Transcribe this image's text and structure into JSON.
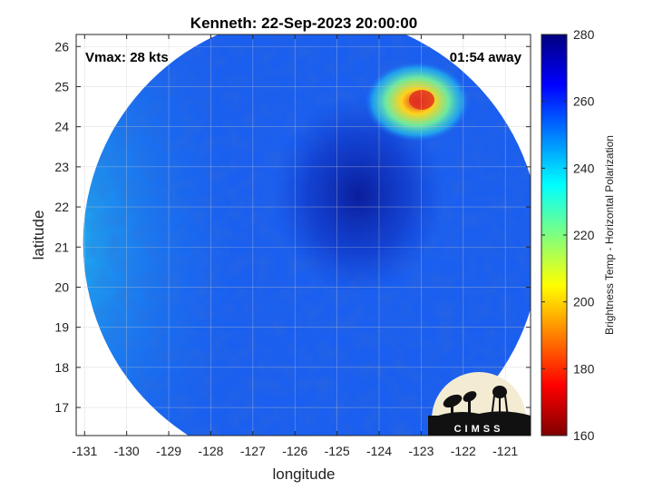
{
  "chart_data": {
    "type": "heatmap",
    "title": "Kenneth: 22-Sep-2023 20:00:00",
    "xlabel": "longitude",
    "ylabel": "latitude",
    "xlim": [
      -131.2,
      -120.4
    ],
    "ylim": [
      16.3,
      26.3
    ],
    "x_ticks": [
      -131,
      -130,
      -129,
      -128,
      -127,
      -126,
      -125,
      -124,
      -123,
      -122,
      -121
    ],
    "y_ticks": [
      17,
      18,
      19,
      20,
      21,
      22,
      23,
      24,
      25,
      26
    ],
    "grid": true,
    "annotations": {
      "vmax": "Vmax: 28 kts",
      "time_away": "01:54 away"
    },
    "colorbar": {
      "label": "Brightness Temp - Horizontal Polarization",
      "min": 160,
      "max": 280,
      "ticks": [
        160,
        180,
        200,
        220,
        240,
        260,
        280
      ],
      "colormap": "jet",
      "colors": [
        "#7f0000",
        "#ff0000",
        "#ff7f00",
        "#ffff00",
        "#7fff7f",
        "#00ffff",
        "#007fff",
        "#0000ff",
        "#00007f"
      ]
    },
    "swath": {
      "shape": "circle",
      "center_lon": -125.6,
      "center_lat": 21.1,
      "typical_value": 258,
      "west_edge_value": 238,
      "cold_feature_center": [
        -122.9,
        24.6
      ],
      "cold_feature_min_value": 190,
      "warm_region_center": [
        -124.9,
        22.8
      ],
      "warm_region_value": 270
    }
  },
  "logo": {
    "text": "CIMSS"
  }
}
